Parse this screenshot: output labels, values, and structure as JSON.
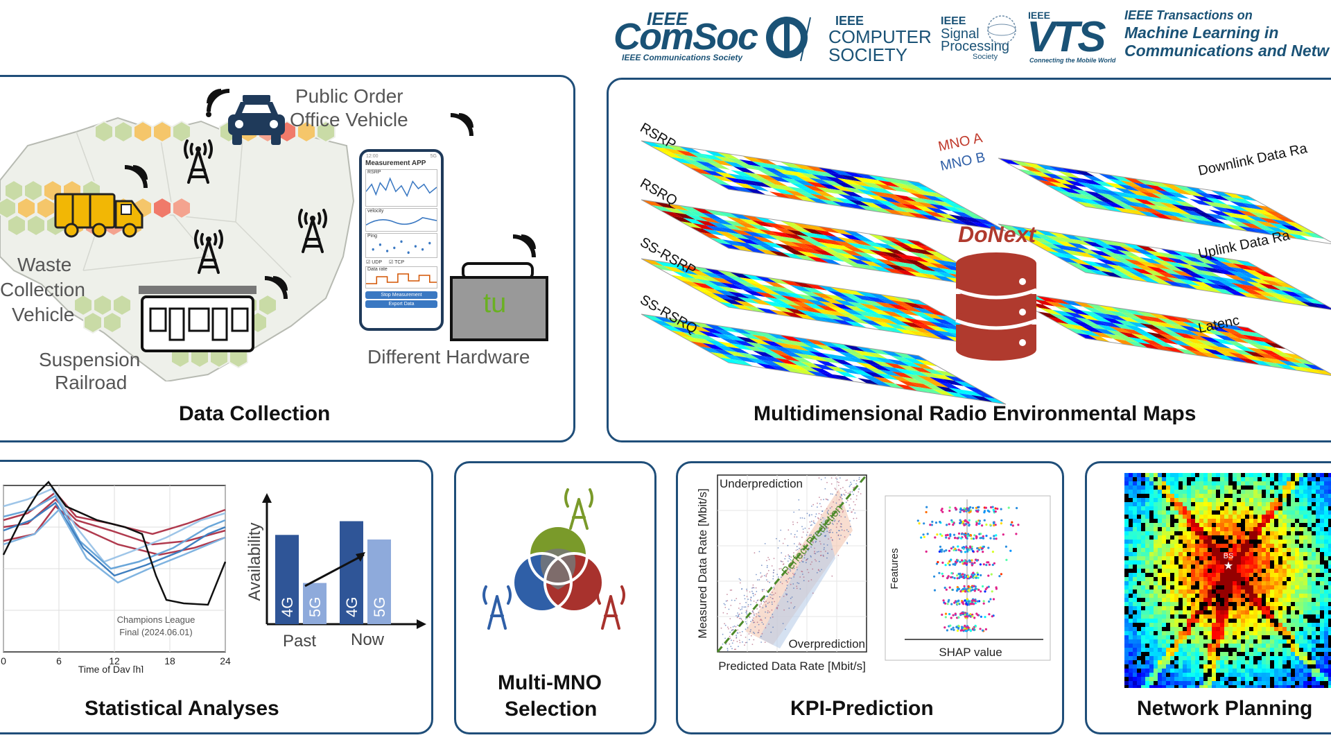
{
  "logos": {
    "comsoc_top": "IEEE",
    "comsoc_main": "ComSoc",
    "comsoc_sub": "IEEE Communications Society",
    "cs_ieee": "IEEE",
    "cs_line1": "COMPUTER",
    "cs_line2": "SOCIETY",
    "sps_ieee": "IEEE",
    "sps_line1": "Signal",
    "sps_line2": "Processing",
    "sps_line3": "Society",
    "vts_ieee": "IEEE",
    "vts_main": "VTS",
    "vts_sub": "Connecting the Mobile World",
    "tmlcn_line1": "IEEE Transactions on",
    "tmlcn_line2": "Machine Learning in",
    "tmlcn_line3": "Communications and Netw"
  },
  "data_collection": {
    "title": "Data Collection",
    "public_order_1": "Public Order",
    "public_order_2": "Office Vehicle",
    "waste_1": "Waste",
    "waste_2": "Collection",
    "waste_3": "Vehicle",
    "railroad_1": "Suspension",
    "railroad_2": "Railroad",
    "hardware": "Different Hardware",
    "hardware_logo": "tu",
    "phone": {
      "time": "12:00",
      "status": "5G",
      "app_title": "Measurement APP",
      "rsrp": "RSRP",
      "velocity": "velocity",
      "ping": "Ping",
      "udp": "UDP",
      "tcp": "TCP",
      "datarate": "Data rate",
      "stop": "Stop Measurement",
      "export": "Export Data"
    }
  },
  "rem": {
    "title": "Multidimensional Radio Environmental Maps",
    "layers_left": [
      "RSRP",
      "RSRQ",
      "SS-RSRP",
      "SS-RSRQ"
    ],
    "layers_right": [
      "Downlink Data Ra",
      "Uplink Data Ra",
      "Latenc"
    ],
    "mno_a": "MNO A",
    "mno_b": "MNO B",
    "donext": "DoNext"
  },
  "stats": {
    "title": "Statistical Analyses",
    "xlabel": "Time of Day [h]",
    "xticks": [
      "0",
      "6",
      "12",
      "18",
      "24"
    ],
    "annotation_1": "Champions League",
    "annotation_2": "Final (2024.06.01)",
    "bar_ylabel": "Availability",
    "bar_groups": [
      "Past",
      "Now"
    ],
    "bar_labels": [
      "4G",
      "5G",
      "4G",
      "5G"
    ],
    "bar_values": [
      0.78,
      0.36,
      0.9,
      0.74
    ]
  },
  "mno": {
    "title_1": "Multi-MNO",
    "title_2": "Selection"
  },
  "kpi": {
    "title": "KPI-Prediction",
    "xlabel": "Predicted Data Rate [Mbit/s]",
    "ylabel": "Measured Data Rate [Mbit/s]",
    "under": "Underprediction",
    "over": "Overprediction",
    "perfect": "Perfect Prediction",
    "shap_xlabel": "SHAP value",
    "shap_ylabel": "Features"
  },
  "planning": {
    "title": "Network Planning",
    "bs": "BS"
  },
  "colors": {
    "panel_border": "#1f4e79",
    "mno_green": "#7a9a2a",
    "mno_blue": "#2f5fa7",
    "mno_red": "#a8322d",
    "donext_red": "#b03a2e",
    "bar_dark": "#2f5597",
    "bar_light": "#8eaadb"
  }
}
